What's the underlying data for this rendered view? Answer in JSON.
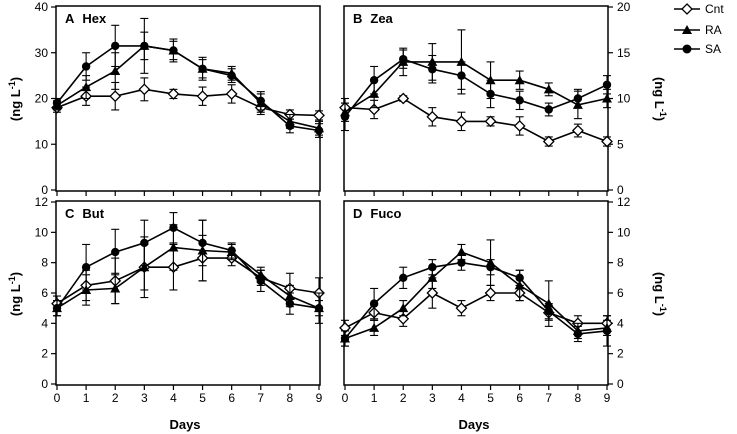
{
  "figure": {
    "xlabel": "Days",
    "ylabel_left": "(ng L",
    "ylabel_right": "(ng L",
    "ylabel_exp": "-1",
    "ylabel_close": ")"
  },
  "legend": {
    "position": "top-right",
    "entries": [
      {
        "name": "Cnt",
        "marker": "open-diamond"
      },
      {
        "name": "RA",
        "marker": "filled-triangle"
      },
      {
        "name": "SA",
        "marker": "filled-circle"
      }
    ]
  },
  "colors": {
    "line": "#000000",
    "open_fill": "#ffffff",
    "axis": "#000000"
  },
  "chart_data": [
    {
      "type": "line",
      "panel": "A",
      "name": "Hex",
      "axis_side": "left",
      "x": [
        0,
        1,
        2,
        3,
        4,
        5,
        6,
        7,
        8,
        9
      ],
      "xlim": [
        0,
        9
      ],
      "ylim": [
        0,
        40
      ],
      "yticks": [
        0,
        10,
        20,
        30,
        40
      ],
      "series": [
        {
          "name": "Cnt",
          "values": [
            18,
            20.5,
            20.5,
            22,
            21,
            20.5,
            21,
            18,
            16.5,
            16.3
          ],
          "err": [
            1,
            2,
            3,
            2.5,
            1,
            2,
            2,
            1.5,
            1,
            1
          ]
        },
        {
          "name": "RA",
          "values": [
            18.5,
            22.5,
            26,
            31.5,
            30.5,
            26.5,
            25.5,
            19,
            15,
            13.5
          ],
          "err": [
            1,
            2.5,
            4,
            3,
            2,
            2,
            1.5,
            2,
            1.5,
            1.5
          ]
        },
        {
          "name": "SA",
          "values": [
            19,
            27,
            31.5,
            31.5,
            30.5,
            26.5,
            25,
            19.5,
            14,
            13
          ],
          "err": [
            1,
            3,
            4.5,
            6,
            2.5,
            2.5,
            1.5,
            2,
            1.5,
            1.5
          ]
        }
      ]
    },
    {
      "type": "line",
      "panel": "B",
      "name": "Zea",
      "axis_side": "right",
      "x": [
        0,
        1,
        2,
        3,
        4,
        5,
        6,
        7,
        8,
        9
      ],
      "xlim": [
        0,
        9
      ],
      "ylim": [
        0,
        20
      ],
      "yticks": [
        0,
        5,
        10,
        15,
        20
      ],
      "series": [
        {
          "name": "Cnt",
          "values": [
            9,
            8.8,
            10,
            8,
            7.5,
            7.5,
            7,
            5.3,
            6.5,
            5.3
          ],
          "err": [
            1,
            1,
            0.3,
            1,
            1,
            0.5,
            1,
            0.5,
            0.7,
            0.5
          ]
        },
        {
          "name": "RA",
          "values": [
            8.5,
            10.5,
            14,
            14,
            14,
            12,
            12,
            11,
            9.3,
            10
          ],
          "err": [
            1,
            1.5,
            1.5,
            2,
            3.5,
            2,
            1,
            0.7,
            1.5,
            1
          ]
        },
        {
          "name": "SA",
          "values": [
            8,
            12,
            14.3,
            13.2,
            12.5,
            10.5,
            9.8,
            8.8,
            10,
            11.5
          ],
          "err": [
            1.5,
            1.5,
            1,
            1.5,
            1.5,
            1.5,
            1,
            0.7,
            1,
            1
          ]
        }
      ]
    },
    {
      "type": "line",
      "panel": "C",
      "name": "But",
      "axis_side": "left",
      "x": [
        0,
        1,
        2,
        3,
        4,
        5,
        6,
        7,
        8,
        9
      ],
      "xlim": [
        0,
        9
      ],
      "ylim": [
        0,
        12
      ],
      "yticks": [
        0,
        2,
        4,
        6,
        8,
        10,
        12
      ],
      "series": [
        {
          "name": "Cnt",
          "values": [
            5.3,
            6.5,
            6.8,
            7.7,
            7.7,
            8.3,
            8.3,
            7,
            6.3,
            6
          ],
          "err": [
            0.5,
            1,
            1.5,
            2,
            1.5,
            1.5,
            0.5,
            0.5,
            1,
            1
          ]
        },
        {
          "name": "RA",
          "values": [
            5,
            6.2,
            6.3,
            7.7,
            9,
            8.8,
            8.7,
            7.2,
            5.8,
            5
          ],
          "err": [
            0.5,
            1,
            1,
            1.5,
            1.5,
            2,
            0.5,
            0.5,
            0.7,
            0.5
          ]
        },
        {
          "name": "SA",
          "values": [
            5,
            7.7,
            8.7,
            9.3,
            10.3,
            9.3,
            8.8,
            6.8,
            5.3,
            5
          ],
          "err": [
            0.5,
            1.5,
            1.5,
            1.5,
            1,
            1.5,
            0.5,
            0.7,
            0.7,
            1
          ]
        }
      ]
    },
    {
      "type": "line",
      "panel": "D",
      "name": "Fuco",
      "axis_side": "right",
      "x": [
        0,
        1,
        2,
        3,
        4,
        5,
        6,
        7,
        8,
        9
      ],
      "xlim": [
        0,
        9
      ],
      "ylim": [
        0,
        12
      ],
      "yticks": [
        0,
        2,
        4,
        6,
        8,
        10,
        12
      ],
      "series": [
        {
          "name": "Cnt",
          "values": [
            3.7,
            4.7,
            4.3,
            6,
            5,
            6,
            6,
            4.7,
            4,
            4
          ],
          "err": [
            0.5,
            0.5,
            0.5,
            1,
            0.5,
            0.5,
            0.5,
            0.5,
            0.5,
            0.5
          ]
        },
        {
          "name": "RA",
          "values": [
            3,
            3.7,
            5,
            7,
            8.7,
            8,
            6.5,
            5.3,
            3.5,
            3.7
          ],
          "err": [
            0.5,
            0.5,
            0.5,
            0.7,
            0.5,
            1.5,
            1,
            1.5,
            0.5,
            0.5
          ]
        },
        {
          "name": "SA",
          "values": [
            3,
            5.3,
            7,
            7.7,
            8,
            7.7,
            7,
            4.8,
            3.3,
            3.5
          ],
          "err": [
            0.5,
            1,
            0.7,
            0.5,
            0.5,
            0.5,
            0.5,
            0.5,
            0.5,
            1
          ]
        }
      ]
    }
  ]
}
